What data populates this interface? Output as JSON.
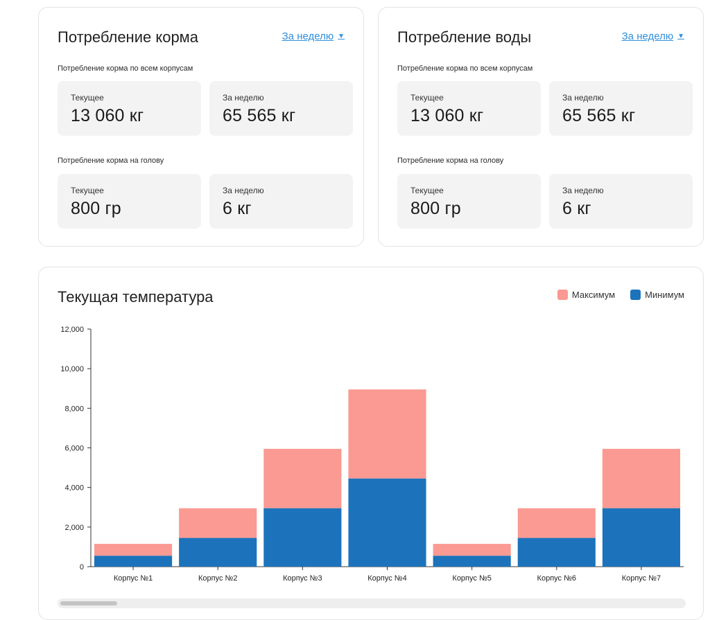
{
  "feed": {
    "title": "Потребление корма",
    "period": "За неделю",
    "section_all": "Потребление корма по всем корпусам",
    "section_head": "Потребление корма на голову",
    "all_current_label": "Текущее",
    "all_current_value": "13 060 кг",
    "all_week_label": "За неделю",
    "all_week_value": "65 565 кг",
    "head_current_label": "Текущее",
    "head_current_value": "800 гр",
    "head_week_label": "За неделю",
    "head_week_value": "6 кг"
  },
  "water": {
    "title": "Потребление воды",
    "period": "За неделю",
    "section_all": "Потребление корма по всем корпусам",
    "section_head": "Потребление корма на голову",
    "all_current_label": "Текущее",
    "all_current_value": "13 060 кг",
    "all_week_label": "За неделю",
    "all_week_value": "65 565 кг",
    "head_current_label": "Текущее",
    "head_current_value": "800 гр",
    "head_week_label": "За неделю",
    "head_week_value": "6 кг"
  },
  "temperature": {
    "title": "Текущая температура",
    "legend_max": "Максимум",
    "legend_min": "Минимум"
  },
  "colors": {
    "max": "#fa9a92",
    "min": "#1c73bb",
    "link": "#2f8fdc"
  },
  "chart_data": {
    "type": "bar",
    "stacked": true,
    "categories": [
      "Корпус №1",
      "Корпус №2",
      "Корпус №3",
      "Корпус №4",
      "Корпус №5",
      "Корпус №6",
      "Корпус №7"
    ],
    "series": [
      {
        "name": "Минимум",
        "values": [
          550,
          1450,
          2950,
          4450,
          550,
          1450,
          2950
        ]
      },
      {
        "name": "Максимум",
        "values": [
          600,
          1500,
          3000,
          4500,
          600,
          1500,
          3000
        ]
      }
    ],
    "ylim": [
      0,
      12000
    ],
    "yticks": [
      "0",
      "2,000",
      "4,000",
      "6,000",
      "8,000",
      "10,000",
      "12,000"
    ],
    "ytick_values": [
      0,
      2000,
      4000,
      6000,
      8000,
      10000,
      12000
    ],
    "grid": false,
    "legend": "top-right"
  }
}
